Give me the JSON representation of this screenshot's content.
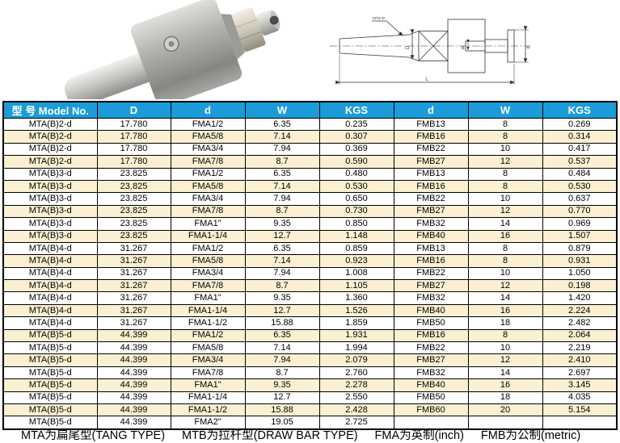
{
  "colors": {
    "header_bg": "#1b9cd8",
    "row_stripe": "#fbf0d2",
    "header_text": "#ffffff",
    "border": "#000000"
  },
  "drawing": {
    "labels": {
      "taper_note": "MT3≈D",
      "diameter_big": "D",
      "slot_width": "W",
      "diameter_small": "d",
      "length": "L"
    }
  },
  "table": {
    "headers": [
      "型 号 Model No.",
      "D",
      "d",
      "W",
      "KGS",
      "d",
      "W",
      "KGS"
    ],
    "rows": [
      [
        "MTA(B)2-d",
        "17.780",
        "FMA1/2",
        "6.35",
        "0.235",
        "FMB13",
        "8",
        "0.269"
      ],
      [
        "MTA(B)2-d",
        "17.780",
        "FMA5/8",
        "7.14",
        "0.307",
        "FMB16",
        "8",
        "0.314"
      ],
      [
        "MTA(B)2-d",
        "17.780",
        "FMA3/4",
        "7.94",
        "0.369",
        "FMB22",
        "10",
        "0.417"
      ],
      [
        "MTA(B)2-d",
        "17.780",
        "FMA7/8",
        "8.7",
        "0.590",
        "FMB27",
        "12",
        "0.537"
      ],
      [
        "MTA(B)3-d",
        "23.825",
        "FMA1/2",
        "6.35",
        "0.480",
        "FMB13",
        "8",
        "0.484"
      ],
      [
        "MTA(B)3-d",
        "23.825",
        "FMA5/8",
        "7.14",
        "0.530",
        "FMB16",
        "8",
        "0.530"
      ],
      [
        "MTA(B)3-d",
        "23.825",
        "FMA3/4",
        "7.94",
        "0.650",
        "FMB22",
        "10",
        "0.637"
      ],
      [
        "MTA(B)3-d",
        "23.825",
        "FMA7/8",
        "8.7",
        "0.730",
        "FMB27",
        "12",
        "0.770"
      ],
      [
        "MTA(B)3-d",
        "23.825",
        "FMA1\"",
        "9.35",
        "0.850",
        "FMB32",
        "14",
        "0.969"
      ],
      [
        "MTA(B)3-d",
        "23.825",
        "FMA1-1/4",
        "12.7",
        "1.148",
        "FMB40",
        "16",
        "1.507"
      ],
      [
        "MTA(B)4-d",
        "31.267",
        "FMA1/2",
        "6.35",
        "0.859",
        "FMB13",
        "8",
        "0.879"
      ],
      [
        "MTA(B)4-d",
        "31.267",
        "FMA5/8",
        "7.14",
        "0.923",
        "FMB16",
        "8",
        "0.931"
      ],
      [
        "MTA(B)4-d",
        "31.267",
        "FMA3/4",
        "7.94",
        "1.008",
        "FMB22",
        "10",
        "1.050"
      ],
      [
        "MTA(B)4-d",
        "31.267",
        "FMA7/8",
        "8.7",
        "1.105",
        "FMB27",
        "12",
        "0.198"
      ],
      [
        "MTA(B)4-d",
        "31.267",
        "FMA1\"",
        "9.35",
        "1.360",
        "FMB32",
        "14",
        "1.420"
      ],
      [
        "MTA(B)4-d",
        "31.267",
        "FMA1-1/4",
        "12.7",
        "1.526",
        "FMB40",
        "16",
        "2.224"
      ],
      [
        "MTA(B)4-d",
        "31.267",
        "FMA1-1/2",
        "15.88",
        "1.859",
        "FMB50",
        "18",
        "2.482"
      ],
      [
        "MTA(B)5-d",
        "44.399",
        "FMA1/2",
        "6.35",
        "1.931",
        "FMB16",
        "8",
        "2.064"
      ],
      [
        "MTA(B)5-d",
        "44.399",
        "FMA5/8",
        "7.14",
        "1.994",
        "FMB22",
        "10",
        "2.219"
      ],
      [
        "MTA(B)5-d",
        "44.399",
        "FMA3/4",
        "7.94",
        "2.079",
        "FMB27",
        "12",
        "2.410"
      ],
      [
        "MTA(B)5-d",
        "44.399",
        "FMA7/8",
        "8.7",
        "2.760",
        "FMB32",
        "14",
        "2.697"
      ],
      [
        "MTA(B)5-d",
        "44.399",
        "FMA1\"",
        "9.35",
        "2.278",
        "FMB40",
        "16",
        "3.145"
      ],
      [
        "MTA(B)5-d",
        "44.399",
        "FMA1-1/4",
        "12.7",
        "2.550",
        "FMB50",
        "18",
        "4.035"
      ],
      [
        "MTA(B)5-d",
        "44.399",
        "FMA1-1/2",
        "15.88",
        "2.428",
        "FMB60",
        "20",
        "5.154"
      ],
      [
        "MTA(B)5-d",
        "44.399",
        "FMA2\"",
        "19.05",
        "2.725",
        "",
        "",
        ""
      ]
    ]
  },
  "footer": {
    "notes": [
      "MTA为扁尾型(TANG TYPE)",
      "MTB为拉杆型(DRAW BAR TYPE)",
      "FMA为英制(inch)",
      "FMB为公制(metric)"
    ]
  }
}
